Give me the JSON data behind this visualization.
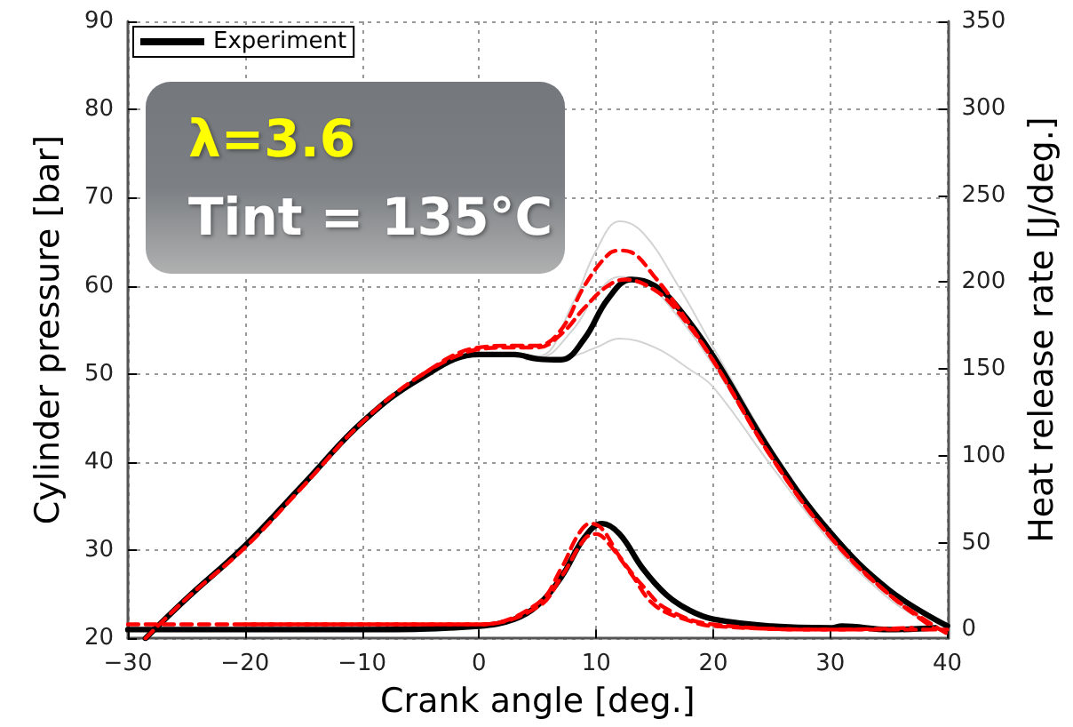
{
  "chart_data": {
    "type": "line",
    "xlabel": "Crank angle [deg.]",
    "ylabel": "Cylinder pressure [bar]",
    "y2label": "Heat release rate [J/deg.]",
    "annotations": [
      "λ=3.6",
      "Tint = 135°C"
    ],
    "xlim": [
      -30,
      40
    ],
    "xticks": [
      -30,
      -20,
      -10,
      0,
      10,
      20,
      30,
      40
    ],
    "ylim": [
      20,
      90
    ],
    "yticks": [
      20,
      30,
      40,
      50,
      60,
      70,
      80,
      90
    ],
    "y2lim": [
      -5,
      350
    ],
    "y2ticks": [
      0,
      50,
      100,
      150,
      200,
      250,
      300,
      350
    ],
    "grid": true,
    "legend": "top left",
    "marker": "none",
    "series": [
      {
        "color": "#d3d3d3",
        "line_style": "solid",
        "x": [
          0,
          5,
          8,
          10,
          12,
          14,
          17,
          20,
          25,
          30,
          35,
          40
        ],
        "values": [
          52.2,
          52,
          58,
          64,
          67.3,
          66,
          60,
          53,
          41.5,
          32,
          25.5,
          21
        ]
      },
      {
        "color": "#d3d3d3",
        "line_style": "solid",
        "x": [
          2,
          5,
          8,
          10,
          12,
          14,
          17,
          20,
          25,
          30,
          35,
          39
        ],
        "values": [
          52.2,
          51.8,
          55,
          59,
          61,
          60.5,
          56.5,
          51,
          40.5,
          31.5,
          25,
          21.3
        ]
      },
      {
        "color": "#d3d3d3",
        "line_style": "solid",
        "x": [
          4,
          6,
          8,
          10,
          12,
          15,
          18,
          20,
          25,
          30,
          35,
          38
        ],
        "values": [
          51.6,
          51.6,
          52,
          53,
          54,
          53,
          50.5,
          48.5,
          39.5,
          31,
          24.5,
          22
        ]
      },
      {
        "name": "Experiment",
        "color": "#000000",
        "line_style": "solid",
        "x": [
          -28.5,
          -25,
          -20,
          -15,
          -10,
          -5,
          0,
          3,
          5,
          7,
          9,
          11,
          13,
          15,
          17,
          20,
          25,
          30,
          35,
          40
        ],
        "values": [
          20,
          24.5,
          30.5,
          37.5,
          44.5,
          49.5,
          52.2,
          52.2,
          51.7,
          51.6,
          54,
          58.5,
          60.7,
          60,
          57.5,
          52,
          41,
          32,
          25.5,
          21.4
        ]
      },
      {
        "color": "#ff0000",
        "line_style": "dashed",
        "x": [
          -28.5,
          -25,
          -20,
          -15,
          -10,
          -5,
          0,
          3,
          5,
          7,
          9,
          11,
          12,
          13,
          15,
          17,
          20,
          25,
          30,
          35,
          40
        ],
        "values": [
          20,
          24.5,
          30.3,
          37.3,
          44.5,
          49.8,
          53,
          53.2,
          53.2,
          55,
          60,
          63.5,
          64,
          63.8,
          61,
          57.5,
          51.5,
          40.5,
          31.5,
          25,
          20.5
        ]
      },
      {
        "color": "#ff0000",
        "line_style": "dashed",
        "x": [
          -5,
          0,
          3,
          5,
          7,
          9,
          11,
          12.5,
          15,
          17,
          20,
          25,
          30,
          35,
          39
        ],
        "values": [
          49.8,
          52.8,
          53,
          53,
          54.5,
          57.5,
          60,
          60.7,
          59.5,
          57,
          51.5,
          40.5,
          31.5,
          25,
          21
        ]
      },
      {
        "color": "#000000",
        "line_style": "solid",
        "axis": "y2",
        "x": [
          -30,
          -10,
          0,
          3,
          5,
          7,
          9,
          10.5,
          12,
          14,
          16,
          18,
          20,
          25,
          30,
          31,
          35,
          39
        ],
        "values": [
          0,
          0,
          2,
          6,
          14,
          30,
          53,
          61,
          55,
          35,
          20,
          11,
          6,
          2,
          1,
          2,
          0,
          1
        ]
      },
      {
        "color": "#ff0000",
        "line_style": "dashed",
        "axis": "y2",
        "x": [
          -30,
          0,
          5,
          7,
          8.5,
          9.5,
          10.5,
          12,
          14,
          16,
          20,
          30,
          40
        ],
        "values": [
          3,
          3,
          15,
          35,
          55,
          61,
          58,
          42,
          25,
          12,
          3,
          0,
          0
        ]
      },
      {
        "color": "#ff0000",
        "line_style": "dashed",
        "axis": "y2",
        "x": [
          -20,
          0,
          5,
          7,
          9,
          10,
          11,
          13,
          15,
          18,
          20,
          30,
          37
        ],
        "values": [
          3,
          3,
          13,
          30,
          52,
          55,
          50,
          32,
          14,
          5,
          2,
          0,
          1
        ]
      }
    ]
  }
}
